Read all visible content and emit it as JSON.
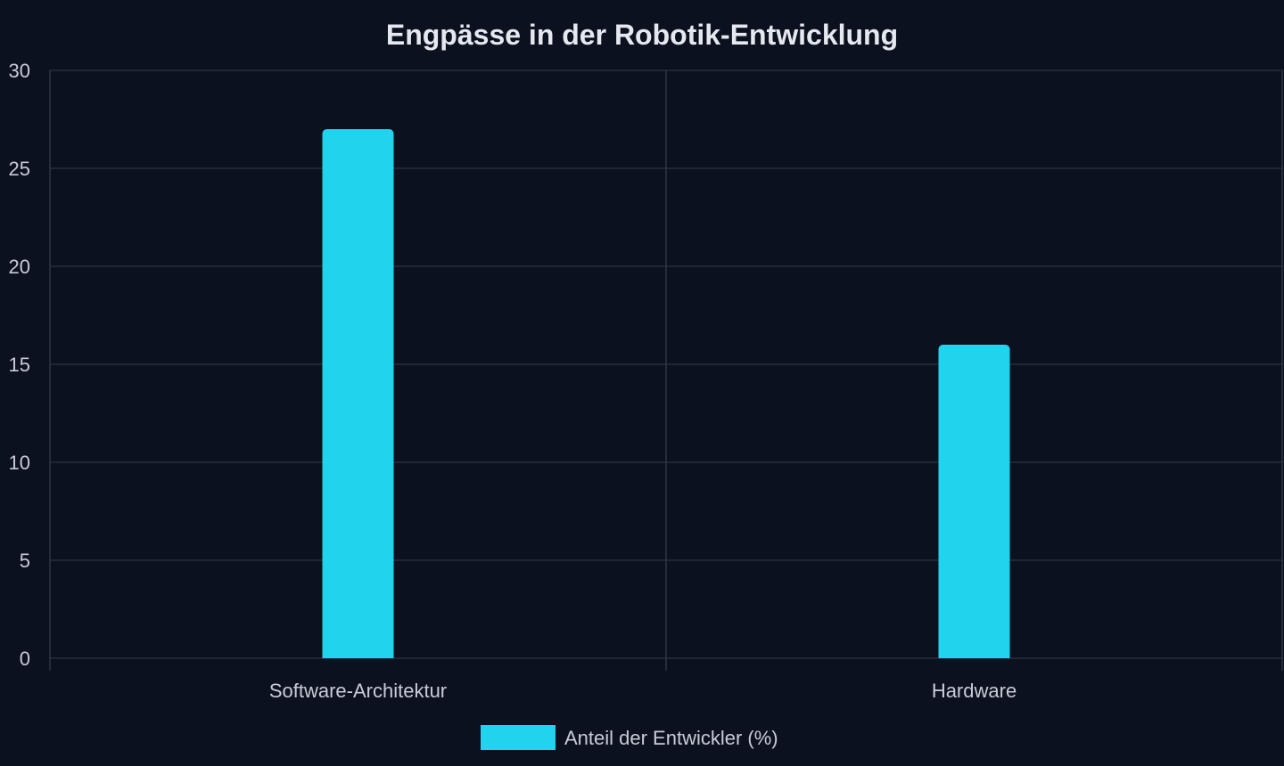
{
  "chart_data": {
    "type": "bar",
    "title": "Engpässe in der Robotik-Entwicklung",
    "xlabel": "",
    "ylabel": "",
    "categories": [
      "Software-Architektur",
      "Hardware"
    ],
    "series": [
      {
        "name": "Anteil der Entwickler (%)",
        "values": [
          27,
          16
        ],
        "color": "#22d3ee"
      }
    ],
    "ylim": [
      0,
      30
    ],
    "yticks": [
      0,
      5,
      10,
      15,
      20,
      25,
      30
    ],
    "grid": true,
    "legend": "bottom-center"
  },
  "theme": {
    "background": "#0c1120",
    "bar_color": "#22d3ee",
    "text_color": "#c9ccd6",
    "title_color": "#e6e8f0",
    "grid_color": "#262d3d"
  }
}
